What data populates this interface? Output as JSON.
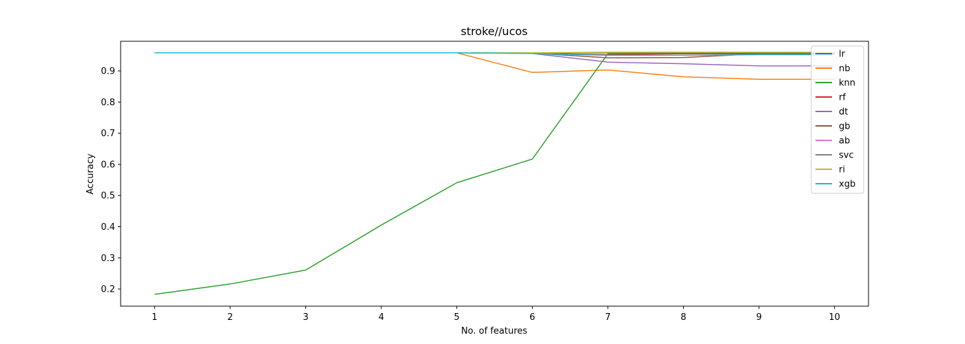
{
  "chart_data": {
    "type": "line",
    "title": "stroke//ucos",
    "xlabel": "No. of features",
    "ylabel": "Accuracy",
    "xlim": [
      0.55,
      10.45
    ],
    "ylim": [
      0.145,
      0.995
    ],
    "x": [
      1,
      2,
      3,
      4,
      5,
      6,
      7,
      8,
      9,
      10
    ],
    "x_ticks": [
      "1",
      "2",
      "3",
      "4",
      "5",
      "6",
      "7",
      "8",
      "9",
      "10"
    ],
    "y_ticks": [
      0.2,
      0.3,
      0.4,
      0.5,
      0.6,
      0.7,
      0.8,
      0.9
    ],
    "y_tick_labels": [
      "0.2",
      "0.3",
      "0.4",
      "0.5",
      "0.6",
      "0.7",
      "0.8",
      "0.9"
    ],
    "grid": false,
    "legend_position": "top-right",
    "series": [
      {
        "name": "lr",
        "color": "#1f77b4",
        "values": [
          0.958,
          0.958,
          0.958,
          0.958,
          0.958,
          0.958,
          0.958,
          0.958,
          0.958,
          0.958
        ]
      },
      {
        "name": "nb",
        "color": "#ff7f0e",
        "values": [
          0.958,
          0.958,
          0.958,
          0.958,
          0.958,
          0.895,
          0.903,
          0.881,
          0.873,
          0.873
        ]
      },
      {
        "name": "knn",
        "color": "#2ca02c",
        "values": [
          0.183,
          0.216,
          0.261,
          0.405,
          0.541,
          0.617,
          0.955,
          0.955,
          0.955,
          0.955
        ]
      },
      {
        "name": "rf",
        "color": "#d62728",
        "values": [
          0.958,
          0.958,
          0.958,
          0.958,
          0.958,
          0.957,
          0.952,
          0.955,
          0.955,
          0.955
        ]
      },
      {
        "name": "dt",
        "color": "#9467bd",
        "values": [
          0.958,
          0.958,
          0.958,
          0.958,
          0.958,
          0.956,
          0.928,
          0.923,
          0.916,
          0.916
        ]
      },
      {
        "name": "gb",
        "color": "#8c564b",
        "values": [
          0.958,
          0.958,
          0.958,
          0.958,
          0.958,
          0.957,
          0.942,
          0.943,
          0.955,
          0.955
        ]
      },
      {
        "name": "ab",
        "color": "#e377c2",
        "values": [
          0.958,
          0.958,
          0.958,
          0.958,
          0.958,
          0.958,
          0.958,
          0.958,
          0.958,
          0.958
        ]
      },
      {
        "name": "svc",
        "color": "#7f7f7f",
        "values": [
          0.958,
          0.958,
          0.958,
          0.958,
          0.958,
          0.958,
          0.958,
          0.958,
          0.958,
          0.958
        ]
      },
      {
        "name": "ri",
        "color": "#bcbd22",
        "values": [
          0.958,
          0.958,
          0.958,
          0.958,
          0.958,
          0.958,
          0.96,
          0.96,
          0.96,
          0.96
        ]
      },
      {
        "name": "xgb",
        "color": "#17becf",
        "values": [
          0.958,
          0.958,
          0.958,
          0.958,
          0.958,
          0.956,
          0.95,
          0.95,
          0.952,
          0.952
        ]
      }
    ]
  }
}
